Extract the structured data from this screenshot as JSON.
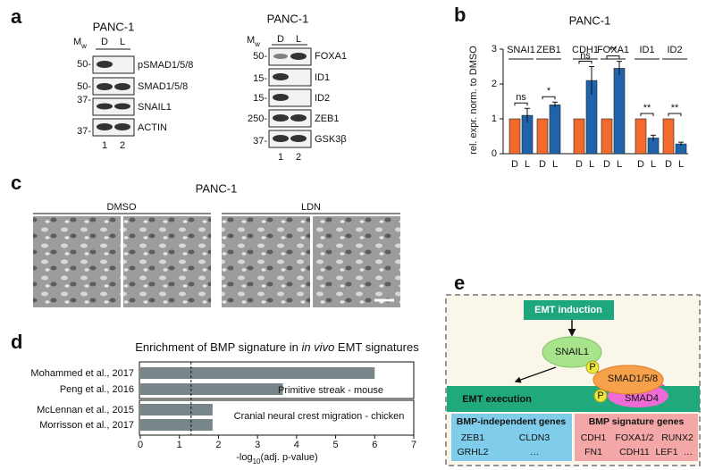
{
  "panel_letters": [
    "a",
    "b",
    "c",
    "d",
    "e"
  ],
  "panel_a": {
    "left": {
      "title": "PANC-1",
      "mw": "M",
      "mw_sub": "w",
      "lanes": [
        "D",
        "L"
      ],
      "markers": [
        "50-",
        "50-",
        "37-",
        "37-"
      ],
      "proteins": [
        "pSMAD1/5/8",
        "SMAD1/5/8",
        "SNAIL1",
        "ACTIN"
      ],
      "lane_numbers": [
        "1",
        "2"
      ]
    },
    "right": {
      "title": "PANC-1",
      "mw": "M",
      "mw_sub": "w",
      "lanes": [
        "D",
        "L"
      ],
      "markers": [
        "50-",
        "15-",
        "15-",
        "250-",
        "37-"
      ],
      "proteins": [
        "FOXA1",
        "ID1",
        "ID2",
        "ZEB1",
        "GSK3β"
      ],
      "lane_numbers": [
        "1",
        "2"
      ]
    }
  },
  "chart_data": [
    {
      "type": "bar",
      "title": "PANC-1",
      "y_label": "rel. expr. norm. to DMSO",
      "categories": [
        "SNAI1",
        "ZEB1",
        "CDH1",
        "FOXA1",
        "ID1",
        "ID2"
      ],
      "series": [
        {
          "name": "D",
          "color": "#f26a2c",
          "values": [
            1,
            1,
            1,
            1,
            1,
            1
          ]
        },
        {
          "name": "L",
          "color": "#1f63aa",
          "values": [
            1.1,
            1.4,
            2.1,
            2.45,
            0.45,
            0.28
          ],
          "errors": [
            0.2,
            0.08,
            0.4,
            0.2,
            0.08,
            0.05
          ]
        }
      ],
      "significance": [
        "ns",
        "*",
        "ns",
        "**",
        "**",
        "**"
      ],
      "ylim": [
        0,
        3
      ],
      "yticks": [
        0,
        1,
        2,
        3
      ]
    },
    {
      "type": "bar",
      "orientation": "horizontal",
      "title_parts": [
        "Enrichment of BMP signature in ",
        "in vivo",
        " EMT signatures"
      ],
      "categories": [
        "Mohammed et al., 2017",
        "Peng et al., 2016",
        "McLennan et al., 2015",
        "Morrisson et al., 2017"
      ],
      "values": [
        6.0,
        3.65,
        1.85,
        1.85
      ],
      "color": "#78868a",
      "group_labels": [
        "Primitive streak - mouse",
        "Cranial neural crest migration - chicken"
      ],
      "threshold": 1.3,
      "x_label_parts": [
        "-log",
        "10",
        "(adj. p-value)"
      ],
      "xlim": [
        0,
        7
      ],
      "xticks": [
        0,
        1,
        2,
        3,
        4,
        5,
        6,
        7
      ]
    }
  ],
  "panel_c": {
    "title": "PANC-1",
    "conditions": [
      "DMSO",
      "LDN"
    ]
  },
  "panel_e": {
    "induction": "EMT induction",
    "snail": "SNAIL1",
    "smad158": "SMAD1/5/8",
    "smad4": "SMAD4",
    "phospho": [
      "P",
      "P"
    ],
    "execution": "EMT execution",
    "independent": {
      "title": "BMP-independent genes",
      "genes": [
        "ZEB1",
        "CLDN3",
        "GRHL2",
        "…"
      ]
    },
    "signature": {
      "title": "BMP signature genes",
      "genes": [
        "CDH1",
        "FOXA1/2",
        "RUNX2",
        "FN1",
        "CDH11",
        "LEF1",
        "…"
      ]
    }
  }
}
